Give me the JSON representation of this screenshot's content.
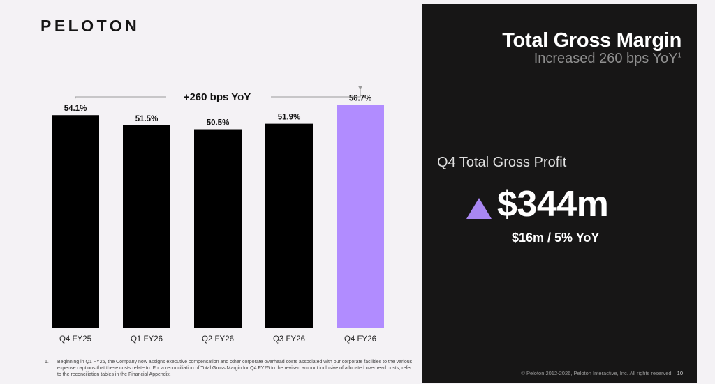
{
  "brand": {
    "logo_text": "PELOTON"
  },
  "chart_data": {
    "type": "bar",
    "categories": [
      "Q4 FY25",
      "Q1 FY26",
      "Q2 FY26",
      "Q3 FY26",
      "Q4 FY26"
    ],
    "values": [
      54.1,
      51.5,
      50.5,
      51.9,
      56.7
    ],
    "value_labels": [
      "54.1%",
      "51.5%",
      "50.5%",
      "51.9%",
      "56.7%"
    ],
    "highlight_index": 4,
    "ylim": [
      0,
      60
    ],
    "grid": false,
    "annotation": "+260 bps YoY",
    "colors": {
      "bar": "#000000",
      "highlight": "#b18cff",
      "connector": "#9a9a9a"
    }
  },
  "footnote": {
    "number": "1.",
    "text": "Beginning in Q1 FY26, the Company now assigns executive compensation and other corporate overhead costs associated with our corporate facilities to the various expense captions that these costs relate to. For a reconciliation of Total Gross Margin for Q4 FY25 to the revised amount inclusive of allocated overhead costs, refer to the reconciliation tables in the Financial Appendix."
  },
  "summary": {
    "title": "Total Gross Margin",
    "subtitle": "Increased 260 bps YoY",
    "subtitle_sup": "1",
    "profit_label": "Q4 Total Gross Profit",
    "profit_value": "$344m",
    "profit_change": "$16m / 5% YoY",
    "icon": "triangle-up-icon",
    "accent_color": "#a987f2"
  },
  "footer": {
    "copyright": "© Peloton 2012-2026, Peloton Interactive, Inc. All rights reserved.",
    "page_number": "10"
  }
}
